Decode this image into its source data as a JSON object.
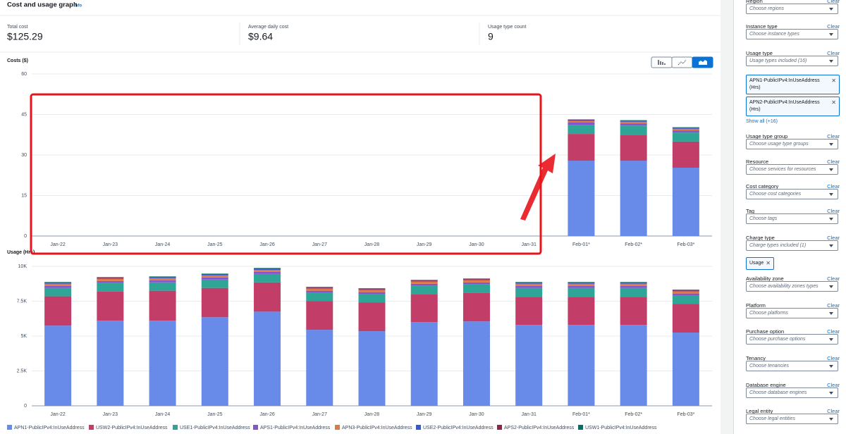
{
  "header": {
    "title": "Cost and usage graph",
    "info": "Info"
  },
  "summary": [
    {
      "label": "Total cost",
      "value": "$125.29"
    },
    {
      "label": "Average daily cost",
      "value": "$9.64"
    },
    {
      "label": "Usage type count",
      "value": "9"
    }
  ],
  "chart_data": [
    {
      "type": "bar",
      "stacked": true,
      "y_label": "Costs ($)",
      "categories": [
        "Jan-22",
        "Jan-23",
        "Jan-24",
        "Jan-25",
        "Jan-26",
        "Jan-27",
        "Jan-28",
        "Jan-29",
        "Jan-30",
        "Jan-31",
        "Feb-01*",
        "Feb-02*",
        "Feb-03*"
      ],
      "ylim": [
        0,
        60
      ],
      "yticks": [
        0,
        15,
        30,
        45,
        60
      ],
      "grid": true,
      "series": [
        {
          "color": "#688ae8",
          "values": [
            0,
            0,
            0,
            0,
            0,
            0,
            0,
            0,
            0,
            0,
            27.9,
            27.9,
            25.3
          ]
        },
        {
          "color": "#c33d69",
          "values": [
            0,
            0,
            0,
            0,
            0,
            0,
            0,
            0,
            0,
            0,
            9.9,
            9.6,
            9.7
          ]
        },
        {
          "color": "#2ea597",
          "values": [
            0,
            0,
            0,
            0,
            0,
            0,
            0,
            0,
            0,
            0,
            3.4,
            3.4,
            3.3
          ]
        },
        {
          "color": "#8456ce",
          "values": [
            0,
            0,
            0,
            0,
            0,
            0,
            0,
            0,
            0,
            0,
            0.8,
            0.8,
            0.8
          ]
        },
        {
          "color": "#e07941",
          "values": [
            0,
            0,
            0,
            0,
            0,
            0,
            0,
            0,
            0,
            0,
            0.6,
            0.6,
            0.6
          ]
        },
        {
          "color": "#3759ce",
          "values": [
            0,
            0,
            0,
            0,
            0,
            0,
            0,
            0,
            0,
            0,
            0.3,
            0.3,
            0.3
          ]
        },
        {
          "color": "#962249",
          "values": [
            0,
            0,
            0,
            0,
            0,
            0,
            0,
            0,
            0,
            0,
            0.2,
            0.2,
            0.2
          ]
        },
        {
          "color": "#096f64",
          "values": [
            0,
            0,
            0,
            0,
            0,
            0,
            0,
            0,
            0,
            0,
            0.1,
            0.1,
            0.1
          ]
        }
      ]
    },
    {
      "type": "bar",
      "stacked": true,
      "y_label": "Usage (Hrs)",
      "categories": [
        "Jan-22",
        "Jan-23",
        "Jan-24",
        "Jan-25",
        "Jan-26",
        "Jan-27",
        "Jan-28",
        "Jan-29",
        "Jan-30",
        "Jan-31",
        "Feb-01*",
        "Feb-02*",
        "Feb-03*"
      ],
      "ylim": [
        0,
        10000
      ],
      "yticks": [
        0,
        {
          "value": 2500,
          "label": "2.5K"
        },
        {
          "value": 5000,
          "label": "5K"
        },
        {
          "value": 7500,
          "label": "7.5K"
        },
        {
          "value": 10000,
          "label": "10K"
        }
      ],
      "grid": true,
      "series": [
        {
          "name": "APN1-PublicIPv4:InUseAddress",
          "color": "#688ae8",
          "values": [
            5750,
            6100,
            6100,
            6350,
            6750,
            5450,
            5350,
            6000,
            6050,
            5800,
            5800,
            5800,
            5250
          ]
        },
        {
          "name": "USW2-PublicIPv4:InUseAddress",
          "color": "#c33d69",
          "values": [
            2100,
            2100,
            2150,
            2100,
            2100,
            2050,
            2050,
            2000,
            2050,
            2000,
            2000,
            2000,
            2050
          ]
        },
        {
          "name": "USE1-PublicIPv4:InUseAddress",
          "color": "#2ea597",
          "values": [
            600,
            600,
            600,
            600,
            600,
            600,
            600,
            600,
            600,
            650,
            650,
            650,
            600
          ]
        },
        {
          "name": "APS1-PublicIPv4:InUseAddress",
          "color": "#8456ce",
          "values": [
            150,
            150,
            150,
            150,
            150,
            150,
            150,
            150,
            150,
            150,
            150,
            150,
            150
          ]
        },
        {
          "name": "APN3-PublicIPv4:InUseAddress",
          "color": "#e07941",
          "values": [
            150,
            150,
            150,
            150,
            150,
            150,
            150,
            150,
            150,
            150,
            150,
            150,
            150
          ]
        },
        {
          "name": "USE2-PublicIPv4:InUseAddress",
          "color": "#3759ce",
          "values": [
            50,
            50,
            50,
            50,
            50,
            50,
            50,
            50,
            50,
            50,
            50,
            50,
            50
          ]
        },
        {
          "name": "APS2-PublicIPv4:InUseAddress",
          "color": "#962249",
          "values": [
            50,
            50,
            50,
            50,
            50,
            50,
            50,
            50,
            50,
            50,
            50,
            50,
            50
          ]
        },
        {
          "name": "USW1-PublicIPv4:InUseAddress",
          "color": "#096f64",
          "values": [
            30,
            30,
            30,
            30,
            30,
            30,
            30,
            30,
            30,
            30,
            30,
            30,
            30
          ]
        }
      ]
    }
  ],
  "filters": [
    {
      "label": "Region",
      "clear": "Clear",
      "placeholder": "Choose regions"
    },
    {
      "label": "Instance type",
      "clear": "Clear",
      "placeholder": "Choose instance types"
    },
    {
      "label": "Usage type",
      "clear": "Clear",
      "placeholder": "Usage types included (16)",
      "tokens": [
        "APN1-PublicIPv4:InUseAddress (Hrs)",
        "APN2-PublicIPv4:InUseAddress (Hrs)"
      ],
      "more": "Show all (+16)"
    },
    {
      "label": "Usage type group",
      "clear": "Clear",
      "placeholder": "Choose usage type groups"
    },
    {
      "label": "Resource",
      "clear": "Clear",
      "placeholder": "Choose services for resources"
    },
    {
      "label": "Cost category",
      "clear": "Clear",
      "placeholder": "Choose cost categories"
    },
    {
      "label": "Tag",
      "clear": "Clear",
      "placeholder": "Choose tags"
    },
    {
      "label": "Charge type",
      "clear": "Clear",
      "placeholder": "Charge types included (1)",
      "tokens": [
        "Usage"
      ]
    },
    {
      "label": "Availability zone",
      "clear": "Clear",
      "placeholder": "Choose availability zones types"
    },
    {
      "label": "Platform",
      "clear": "Clear",
      "placeholder": "Choose platforms"
    },
    {
      "label": "Purchase option",
      "clear": "Clear",
      "placeholder": "Choose purchase options"
    },
    {
      "label": "Tenancy",
      "clear": "Clear",
      "placeholder": "Choose tenancies"
    },
    {
      "label": "Database engine",
      "clear": "Clear",
      "placeholder": "Choose database engines"
    },
    {
      "label": "Legal entity",
      "clear": "Clear",
      "placeholder": "Choose legal entities"
    }
  ]
}
